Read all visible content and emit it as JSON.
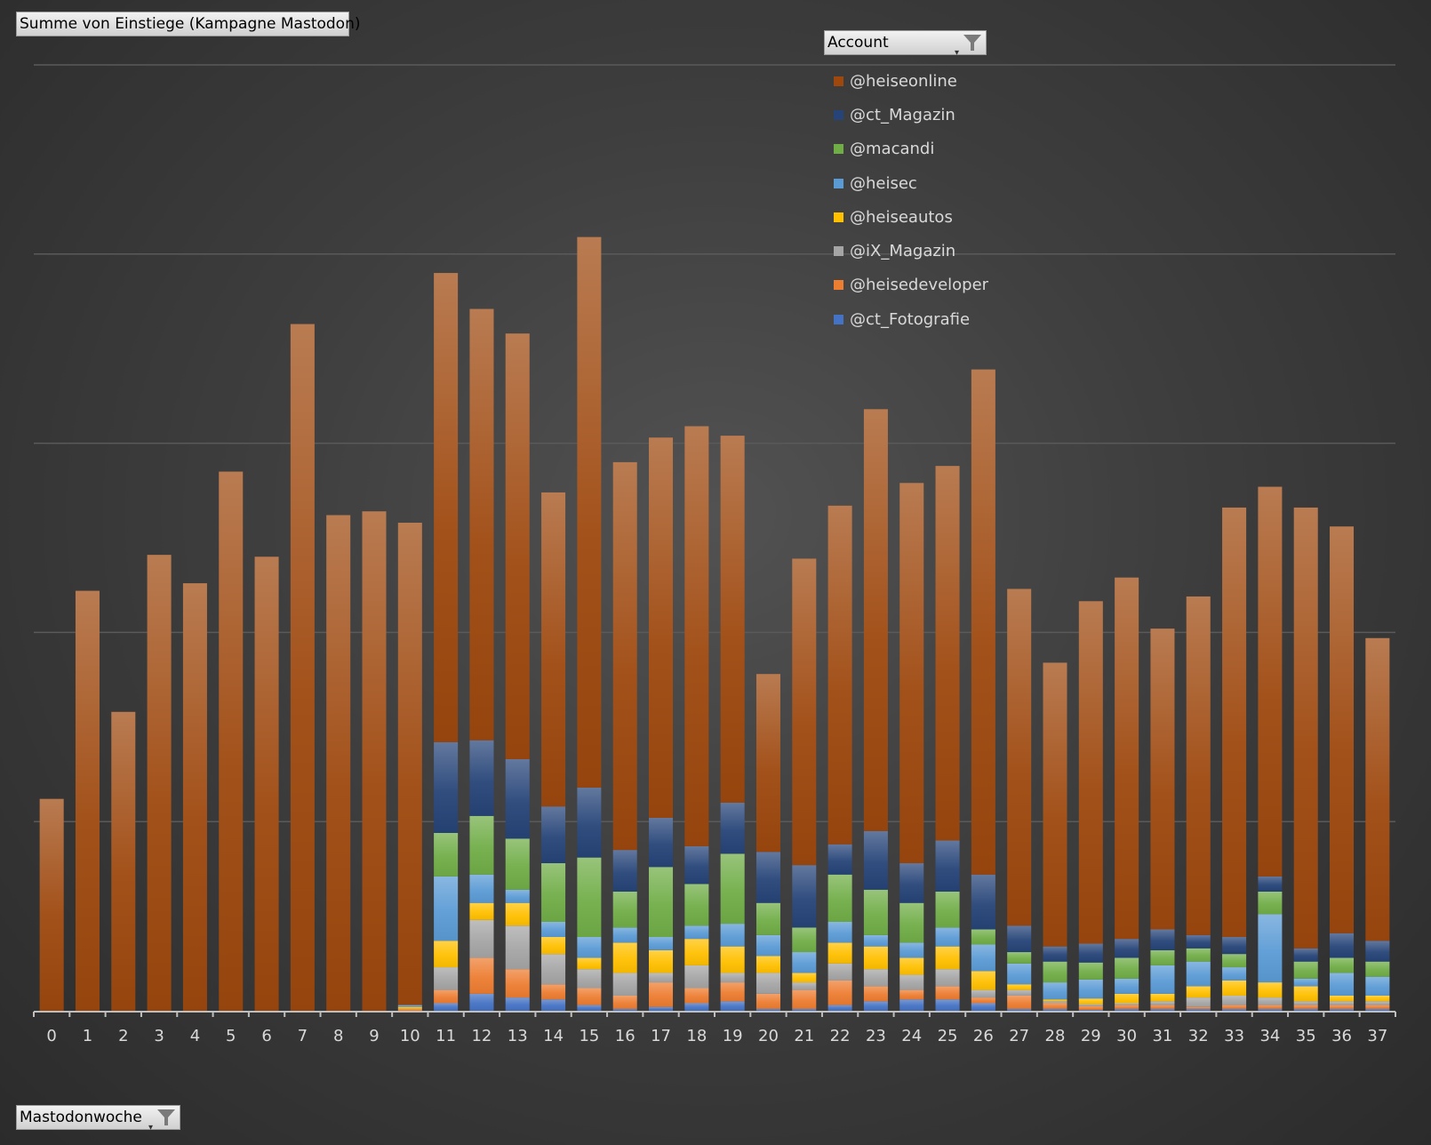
{
  "fields": {
    "value_field": "Summe von Einstiege (Kampagne Mastodon)",
    "legend_field": "Account",
    "axis_field": "Mastodonwoche",
    "filter_icon": "funnel-icon"
  },
  "chart_data": {
    "type": "bar",
    "stacked": true,
    "title": "Summe von Einstiege (Kampagne Mastodon)",
    "xlabel": "Mastodonwoche",
    "ylabel": "",
    "ylim": [
      0,
      500
    ],
    "y_gridlines": [
      100,
      200,
      300,
      400,
      500
    ],
    "y_tick_labels_visible": false,
    "grid": true,
    "legend_title": "Account",
    "legend_position": "top-right",
    "categories": [
      "0",
      "1",
      "2",
      "3",
      "4",
      "5",
      "6",
      "7",
      "8",
      "9",
      "10",
      "11",
      "12",
      "13",
      "14",
      "15",
      "16",
      "17",
      "18",
      "19",
      "20",
      "21",
      "22",
      "23",
      "24",
      "25",
      "26",
      "27",
      "28",
      "29",
      "30",
      "31",
      "32",
      "33",
      "34",
      "35",
      "36",
      "37"
    ],
    "series": [
      {
        "name": "@ct_Fotografie",
        "color": "#4472c4",
        "values": [
          0,
          0,
          0,
          0,
          0,
          0,
          0,
          0,
          0,
          0,
          0,
          4,
          9,
          7,
          6,
          3,
          1,
          2,
          4,
          5,
          1,
          1,
          3,
          5,
          6,
          6,
          4,
          1,
          1,
          0.5,
          1,
          1,
          1,
          1,
          1,
          1,
          1,
          1
        ]
      },
      {
        "name": "@heisedeveloper",
        "color": "#ed7d31",
        "values": [
          0,
          0,
          0,
          0,
          0,
          0,
          0,
          0,
          0,
          0,
          1,
          7,
          19,
          15,
          8,
          9,
          7,
          13,
          8,
          10,
          8,
          10,
          13,
          8,
          5,
          7,
          3,
          7,
          3,
          2,
          2,
          2,
          1,
          2,
          2,
          2,
          2,
          2
        ]
      },
      {
        "name": "@iX_Magazin",
        "color": "#a5a5a5",
        "values": [
          0,
          0,
          0,
          0,
          0,
          0,
          0,
          0,
          0,
          0,
          0,
          12,
          20,
          23,
          16,
          10,
          12,
          5,
          12,
          5,
          11,
          4,
          9,
          9,
          8,
          9,
          4,
          3,
          1,
          1,
          1,
          2,
          5,
          5,
          4,
          2,
          2,
          2
        ]
      },
      {
        "name": "@heiseautos",
        "color": "#ffc000",
        "values": [
          0,
          0,
          0,
          0,
          0,
          0,
          0,
          0,
          0,
          0,
          1,
          14,
          9,
          12,
          9,
          6,
          16,
          12,
          14,
          14,
          9,
          5,
          11,
          12,
          9,
          12,
          10,
          3,
          1,
          3,
          5,
          4,
          6,
          8,
          8,
          8,
          3,
          3
        ]
      },
      {
        "name": "@heisec",
        "color": "#5b9bd5",
        "values": [
          0,
          0,
          0,
          0,
          0,
          0,
          0,
          0,
          0,
          0,
          1,
          34,
          15,
          7,
          8,
          11,
          8,
          7,
          7,
          12,
          11,
          11,
          11,
          6,
          8,
          10,
          14,
          11,
          9,
          10,
          8,
          15,
          13,
          7,
          36,
          4,
          12,
          10
        ]
      },
      {
        "name": "@macandi",
        "color": "#70ad47",
        "values": [
          0,
          0,
          0,
          0,
          0,
          0,
          0,
          0,
          0,
          0,
          0,
          23,
          31,
          27,
          31,
          42,
          19,
          37,
          22,
          37,
          17,
          13,
          25,
          24,
          21,
          19,
          8,
          6,
          11,
          9,
          11,
          8,
          7,
          7,
          12,
          9,
          8,
          8
        ]
      },
      {
        "name": "@ct_Magazin",
        "color": "#264478",
        "values": [
          0,
          0,
          0,
          0,
          0,
          0,
          0,
          0,
          0,
          0,
          0,
          48,
          40,
          42,
          30,
          37,
          22,
          26,
          20,
          27,
          27,
          33,
          16,
          31,
          21,
          27,
          29,
          14,
          8,
          10,
          10,
          11,
          7,
          9,
          8,
          7,
          13,
          11
        ]
      },
      {
        "name": "@heiseonline",
        "color": "#9e480e",
        "values": [
          112,
          222,
          158,
          241,
          226,
          285,
          240,
          363,
          262,
          264,
          255,
          248,
          228,
          225,
          166,
          291,
          205,
          201,
          222,
          194,
          94,
          162,
          179,
          223,
          201,
          198,
          267,
          178,
          150,
          181,
          191,
          159,
          179,
          227,
          206,
          233,
          215,
          160
        ]
      }
    ]
  }
}
